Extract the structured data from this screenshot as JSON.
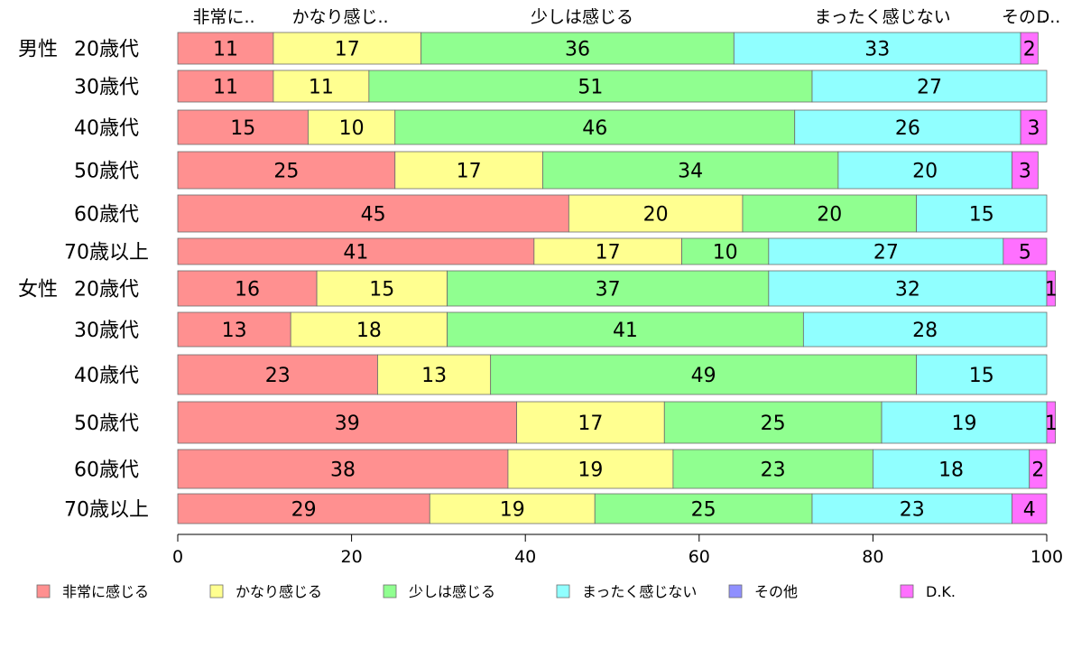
{
  "chart_data": {
    "type": "bar",
    "orientation": "horizontal",
    "stacked": true,
    "top_labels": [
      "非常に..",
      "かなり感じ..",
      "少しは感じる",
      "まったく感じない",
      "その..",
      "D.."
    ],
    "groups": [
      {
        "label": "男性",
        "row_start": 0
      },
      {
        "label": "女性",
        "row_start": 6
      }
    ],
    "categories": [
      "20歳代",
      "30歳代",
      "40歳代",
      "50歳代",
      "60歳代",
      "70歳以上",
      "20歳代",
      "30歳代",
      "40歳代",
      "50歳代",
      "60歳代",
      "70歳以上"
    ],
    "series": [
      {
        "name": "非常に感じる",
        "color": "#ff9090",
        "values": [
          11,
          11,
          15,
          25,
          45,
          41,
          16,
          13,
          23,
          39,
          38,
          29
        ],
        "labels": [
          "11",
          "11",
          "15",
          "25",
          "45",
          "41",
          "16",
          "13",
          "23",
          "39",
          "38",
          "29"
        ]
      },
      {
        "name": "かなり感じる",
        "color": "#ffff90",
        "values": [
          17,
          11,
          10,
          17,
          20,
          17,
          15,
          18,
          13,
          17,
          19,
          19
        ],
        "labels": [
          "17",
          "11",
          "10",
          "17",
          "20",
          "17",
          "15",
          "18",
          "13",
          "17",
          "19",
          "19"
        ]
      },
      {
        "name": "少しは感じる",
        "color": "#90ff90",
        "values": [
          36,
          51,
          46,
          34,
          20,
          10,
          37,
          41,
          49,
          25,
          23,
          25
        ],
        "labels": [
          "36",
          "51",
          "46",
          "34",
          "20",
          "10",
          "37",
          "41",
          "49",
          "25",
          "23",
          "25"
        ]
      },
      {
        "name": "まったく感じない",
        "color": "#90ffff",
        "values": [
          33,
          27,
          26,
          20,
          15,
          27,
          32,
          28,
          15,
          19,
          18,
          23
        ],
        "labels": [
          "33",
          "27",
          "26",
          "20",
          "15",
          "27",
          "32",
          "28",
          "15",
          "19",
          "18",
          "23"
        ]
      },
      {
        "name": "その他",
        "color": "#9090ff",
        "values": [
          0,
          0,
          0,
          0,
          0,
          0,
          0,
          0,
          0,
          0,
          0,
          0
        ],
        "labels": [
          "",
          "",
          "",
          "",
          "",
          "",
          "",
          "",
          "",
          "",
          "",
          ""
        ]
      },
      {
        "name": "D.K.",
        "color": "#ff70ff",
        "values": [
          2,
          0,
          3,
          3,
          0,
          5,
          1,
          0,
          0,
          1,
          2,
          4
        ],
        "labels": [
          "2",
          "",
          "3",
          "3",
          "",
          "5",
          "1",
          "",
          "",
          "1",
          "2",
          "4"
        ]
      }
    ],
    "xlim": [
      0,
      100
    ],
    "xticks": [
      0,
      20,
      40,
      60,
      80,
      100
    ],
    "legend_position": "bottom",
    "grid": false
  }
}
